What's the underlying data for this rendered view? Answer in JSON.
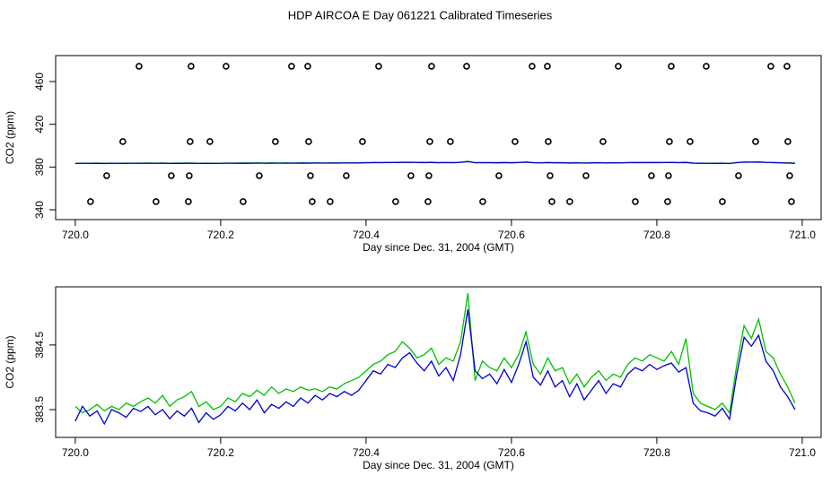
{
  "chart_data": [
    {
      "type": "scatter",
      "title": "HDP AIRCOA E  Day 061221  Calibrated Timeseries",
      "xlabel": "Day since Dec. 31, 2004 (GMT)",
      "ylabel": "CO2 (ppm)",
      "xlim": [
        719.973,
        721.026
      ],
      "ylim": [
        330.8,
        484.3
      ],
      "xticks": [
        {
          "value": 720,
          "label": "720.0"
        },
        720.2,
        720.4,
        720.6,
        720.8,
        {
          "value": 721,
          "label": "721.0"
        }
      ],
      "yticks": [
        340,
        380,
        420,
        460
      ],
      "series": [
        {
          "color": "#000000",
          "x": [
            720.0877,
            720.1593,
            720.2074,
            720.2975,
            720.3198,
            720.4173,
            720.4901,
            720.5383,
            720.6284,
            720.6494,
            720.7469,
            720.8198,
            720.8679,
            720.9568,
            720.979,
            720.0654,
            720.158,
            720.1852,
            720.2753,
            720.321,
            720.3951,
            720.4877,
            720.516,
            720.6049,
            720.6506,
            720.7259,
            720.8173,
            720.8457,
            720.9358,
            720.9802,
            720.0432,
            720.1321,
            720.1568,
            720.2531,
            720.3235,
            720.3728,
            720.4617,
            720.4864,
            720.5827,
            720.6531,
            720.7025,
            720.7926,
            720.816,
            720.9123,
            720.9827,
            720.021,
            720.1111,
            720.1556,
            720.2309,
            720.3259,
            720.3506,
            720.4407,
            720.4852,
            720.5605,
            720.6556,
            720.6802,
            720.7704,
            720.8148,
            720.8901,
            720.9852
          ],
          "values": [
            474.3,
            474.3,
            474.3,
            474.3,
            474.3,
            474.3,
            474.3,
            474.3,
            474.3,
            474.3,
            474.3,
            474.3,
            474.3,
            474.3,
            474.3,
            403.8,
            403.8,
            403.8,
            403.8,
            403.8,
            403.8,
            403.8,
            403.8,
            403.8,
            403.8,
            403.8,
            403.8,
            403.8,
            403.8,
            403.8,
            371.9,
            371.9,
            371.9,
            371.9,
            371.9,
            371.9,
            371.9,
            371.9,
            371.9,
            371.9,
            371.9,
            371.9,
            371.9,
            371.9,
            371.9,
            347.6,
            347.6,
            347.6,
            347.6,
            347.6,
            347.6,
            347.6,
            347.6,
            347.6,
            347.6,
            347.6,
            347.6,
            347.6,
            347.6,
            347.6
          ]
        }
      ]
    },
    {
      "type": "line",
      "xlabel": "Day since Dec. 31, 2004 (GMT)",
      "ylabel": "CO2 (ppm)",
      "xlim": [
        719.973,
        721.026
      ],
      "ylim": [
        383.07,
        385.4
      ],
      "xticks": [
        {
          "value": 720,
          "label": "720.0"
        },
        720.2,
        720.4,
        720.6,
        720.8,
        {
          "value": 721,
          "label": "721.0"
        }
      ],
      "yticks": [
        383.5,
        384.5
      ],
      "x": [
        720.0,
        720.01,
        720.02,
        720.03,
        720.04,
        720.05,
        720.06,
        720.07,
        720.08,
        720.09,
        720.1,
        720.11,
        720.12,
        720.13,
        720.14,
        720.15,
        720.16,
        720.17,
        720.18,
        720.19,
        720.2,
        720.21,
        720.22,
        720.23,
        720.24,
        720.25,
        720.26,
        720.27,
        720.28,
        720.29,
        720.3,
        720.31,
        720.32,
        720.33,
        720.34,
        720.35,
        720.36,
        720.37,
        720.38,
        720.39,
        720.4,
        720.41,
        720.42,
        720.43,
        720.44,
        720.45,
        720.46,
        720.47,
        720.48,
        720.49,
        720.5,
        720.51,
        720.52,
        720.53,
        720.54,
        720.55,
        720.56,
        720.57,
        720.58,
        720.59,
        720.6,
        720.61,
        720.62,
        720.63,
        720.64,
        720.65,
        720.66,
        720.67,
        720.68,
        720.69,
        720.7,
        720.71,
        720.72,
        720.73,
        720.74,
        720.75,
        720.76,
        720.77,
        720.78,
        720.79,
        720.8,
        720.81,
        720.82,
        720.83,
        720.84,
        720.85,
        720.86,
        720.87,
        720.88,
        720.89,
        720.9,
        720.91,
        720.92,
        720.93,
        720.94,
        720.95,
        720.96,
        720.97,
        720.98,
        720.99
      ],
      "series": [
        {
          "color": "#00c000",
          "values": [
            383.55,
            383.45,
            383.5,
            383.58,
            383.48,
            383.55,
            383.5,
            383.6,
            383.55,
            383.62,
            383.68,
            383.6,
            383.72,
            383.55,
            383.65,
            383.7,
            383.78,
            383.55,
            383.62,
            383.5,
            383.55,
            383.68,
            383.62,
            383.75,
            383.7,
            383.8,
            383.72,
            383.85,
            383.75,
            383.82,
            383.78,
            383.85,
            383.8,
            383.82,
            383.78,
            383.85,
            383.82,
            383.9,
            383.95,
            384.0,
            384.1,
            384.2,
            384.25,
            384.35,
            384.4,
            384.55,
            384.45,
            384.3,
            384.35,
            384.45,
            384.2,
            384.3,
            384.25,
            384.55,
            385.3,
            383.95,
            384.25,
            384.15,
            384.1,
            384.3,
            384.15,
            384.35,
            384.7,
            384.2,
            384.05,
            384.3,
            384.1,
            384.15,
            383.9,
            384.05,
            383.85,
            384.0,
            384.1,
            383.95,
            384.05,
            384.0,
            384.2,
            384.3,
            384.25,
            384.35,
            384.3,
            384.25,
            384.4,
            384.2,
            384.6,
            383.75,
            383.6,
            383.55,
            383.5,
            383.6,
            383.45,
            384.2,
            384.8,
            384.6,
            384.9,
            384.4,
            384.3,
            384.05,
            383.85,
            383.6
          ]
        },
        {
          "color": "#0000cc",
          "values": [
            383.32,
            383.55,
            383.4,
            383.48,
            383.28,
            383.5,
            383.45,
            383.38,
            383.52,
            383.47,
            383.55,
            383.42,
            383.5,
            383.36,
            383.48,
            383.4,
            383.52,
            383.3,
            383.45,
            383.35,
            383.42,
            383.55,
            383.48,
            383.6,
            383.5,
            383.65,
            383.45,
            383.58,
            383.52,
            383.62,
            383.55,
            383.68,
            383.6,
            383.72,
            383.65,
            383.75,
            383.7,
            383.78,
            383.72,
            383.8,
            383.95,
            384.1,
            384.05,
            384.2,
            384.15,
            384.3,
            384.38,
            384.22,
            384.1,
            384.25,
            384.02,
            384.15,
            383.95,
            384.35,
            385.05,
            384.1,
            383.98,
            384.05,
            383.9,
            384.12,
            383.92,
            384.2,
            384.55,
            384.0,
            383.88,
            384.1,
            383.85,
            383.95,
            383.7,
            383.9,
            383.65,
            383.8,
            383.95,
            383.75,
            383.9,
            383.85,
            384.05,
            384.15,
            384.1,
            384.2,
            384.12,
            384.18,
            384.22,
            384.08,
            384.15,
            383.6,
            383.48,
            383.45,
            383.4,
            383.52,
            383.35,
            384.05,
            384.62,
            384.48,
            384.65,
            384.25,
            384.1,
            383.85,
            383.7,
            383.5
          ]
        }
      ]
    }
  ]
}
